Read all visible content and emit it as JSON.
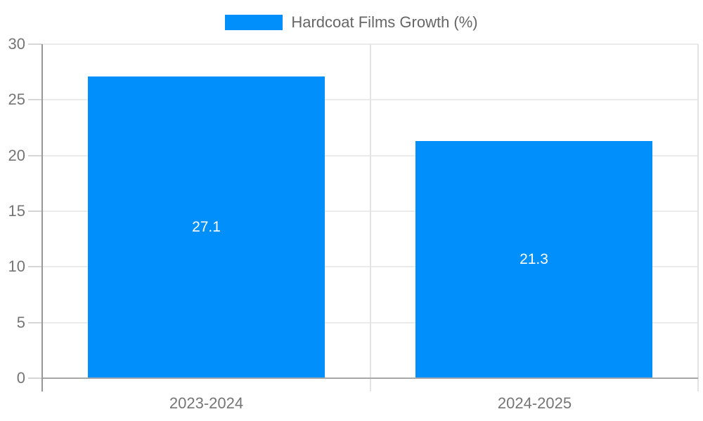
{
  "legend": {
    "label": "Hardcoat Films Growth (%)"
  },
  "chart_data": {
    "type": "bar",
    "title": "Hardcoat Films Growth (%)",
    "series_name": "Hardcoat Films Growth (%)",
    "categories": [
      "2023-2024",
      "2024-2025"
    ],
    "values": [
      27.1,
      21.3
    ],
    "value_labels": [
      "27.1",
      "21.3"
    ],
    "xlabel": "",
    "ylabel": "",
    "ylim": [
      0,
      30
    ],
    "yticks": [
      0,
      5,
      10,
      15,
      20,
      25,
      30
    ],
    "grid": true,
    "legend_position": "top",
    "colors": {
      "bar": "#008FFB",
      "bar_value_text": "#ffffff",
      "axis_text": "#757575",
      "legend_text": "#666666",
      "gridline": "#ebebeb",
      "axis_line": "#a8a8a8"
    }
  }
}
